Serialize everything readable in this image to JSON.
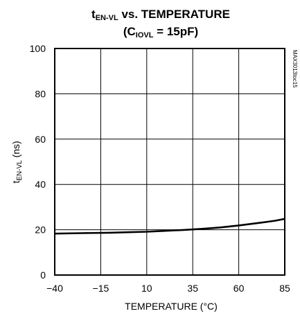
{
  "chart_data": {
    "type": "line",
    "title": {
      "line1_main": "t",
      "line1_sub": "EN-VL",
      "line1_rest": " vs. TEMPERATURE",
      "line2_pre": "(C",
      "line2_sub": "IOVL",
      "line2_rest": " = 15pF)"
    },
    "xlabel": "TEMPERATURE (°C)",
    "ylabel": {
      "main": "t",
      "sub": "EN-VL",
      "rest": " (ns)"
    },
    "part_number": "MAX3013toc15",
    "xlim": [
      -40,
      85
    ],
    "ylim": [
      0,
      100
    ],
    "x_ticks": [
      -40,
      -15,
      10,
      35,
      60,
      85
    ],
    "y_ticks": [
      0,
      20,
      40,
      60,
      80,
      100
    ],
    "grid": true,
    "series": [
      {
        "x": [
          -40,
          -25,
          -10,
          0,
          10,
          20,
          30,
          40,
          50,
          60,
          70,
          80,
          85
        ],
        "y": [
          18.3,
          18.5,
          18.7,
          18.9,
          19.1,
          19.5,
          19.9,
          20.4,
          21.0,
          21.9,
          22.9,
          24.0,
          24.8
        ]
      }
    ]
  }
}
